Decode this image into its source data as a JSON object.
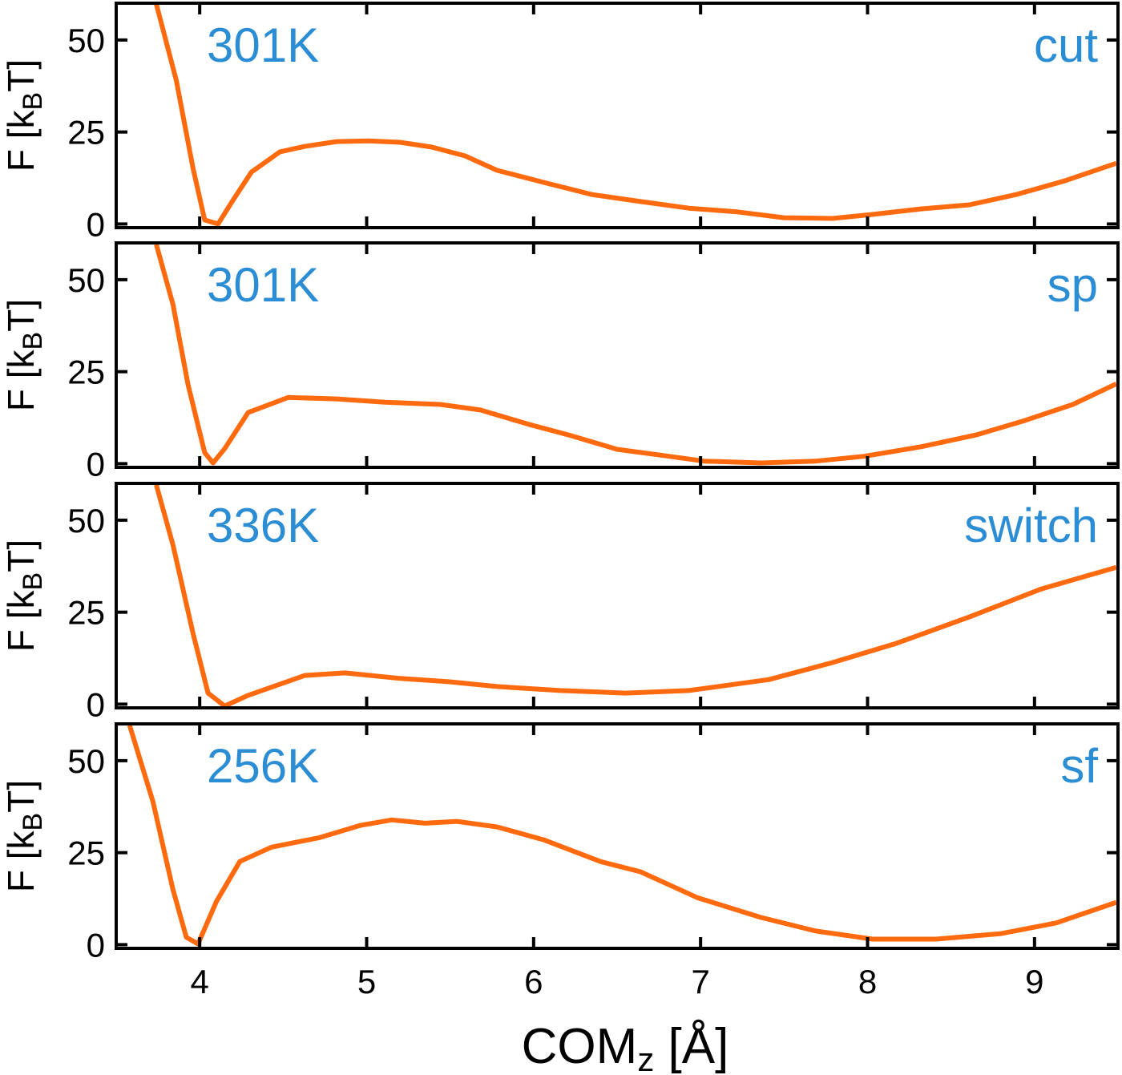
{
  "chart_data": [
    {
      "type": "line",
      "annotations": [
        "301K",
        "cut"
      ],
      "ylabel": [
        "F [k",
        "B",
        "T]"
      ],
      "xlim": [
        3.5,
        9.5
      ],
      "xticks": [
        4,
        5,
        6,
        7,
        8,
        9
      ],
      "ylim": [
        -1,
        60
      ],
      "yticks": [
        0,
        25,
        50
      ],
      "series": [
        {
          "color": "#ff6a0e",
          "x": [
            3.74,
            3.86,
            3.96,
            4.03,
            4.11,
            4.2,
            4.31,
            4.48,
            4.63,
            4.82,
            5.01,
            5.2,
            5.39,
            5.59,
            5.78,
            6.06,
            6.35,
            6.64,
            6.93,
            7.22,
            7.5,
            7.79,
            8.03,
            8.32,
            8.61,
            8.89,
            9.18,
            9.49
          ],
          "values": [
            59.8,
            39,
            15.2,
            1.1,
            0,
            6.5,
            14.1,
            19.6,
            21.1,
            22.4,
            22.6,
            22.2,
            20.9,
            18.5,
            14.6,
            11.3,
            8,
            6.1,
            4.3,
            3.3,
            1.7,
            1.5,
            2.6,
            4.1,
            5.2,
            8,
            11.7,
            16.5
          ]
        }
      ]
    },
    {
      "type": "line",
      "annotations": [
        "301K",
        "sp"
      ],
      "ylabel": [
        "F [k",
        "B",
        "T]"
      ],
      "xlim": [
        3.5,
        9.5
      ],
      "xticks": [
        4,
        5,
        6,
        7,
        8,
        9
      ],
      "ylim": [
        -1,
        60
      ],
      "yticks": [
        0,
        25,
        50
      ],
      "series": [
        {
          "color": "#ff6a0e",
          "x": [
            3.74,
            3.84,
            3.93,
            4.03,
            4.08,
            4.15,
            4.29,
            4.53,
            4.82,
            5.11,
            5.44,
            5.68,
            5.97,
            6.21,
            6.5,
            6.78,
            7.02,
            7.36,
            7.69,
            7.98,
            8.32,
            8.65,
            8.94,
            9.23,
            9.49
          ],
          "values": [
            59.6,
            43.3,
            21.5,
            3,
            0.2,
            4.1,
            13.9,
            18,
            17.6,
            16.7,
            16.1,
            14.6,
            10.7,
            7.8,
            3.9,
            2.2,
            0.7,
            0.2,
            0.7,
            2,
            4.6,
            7.8,
            11.7,
            16.1,
            21.7
          ]
        }
      ]
    },
    {
      "type": "line",
      "annotations": [
        "336K",
        "switch"
      ],
      "ylabel": [
        "F [k",
        "B",
        "T]"
      ],
      "xlim": [
        3.5,
        9.5
      ],
      "xticks": [
        4,
        5,
        6,
        7,
        8,
        9
      ],
      "ylim": [
        -1,
        60
      ],
      "yticks": [
        0,
        25,
        50
      ],
      "series": [
        {
          "color": "#ff6a0e",
          "x": [
            3.74,
            3.84,
            3.96,
            4.05,
            4.15,
            4.29,
            4.63,
            4.87,
            5.2,
            5.49,
            5.78,
            6.16,
            6.55,
            6.93,
            7.41,
            7.79,
            8.17,
            8.61,
            9.04,
            9.49
          ],
          "values": [
            59.6,
            43.3,
            19.3,
            3,
            -0.5,
            2.4,
            7.8,
            8.5,
            7,
            6.1,
            4.8,
            3.7,
            3,
            3.7,
            6.7,
            11.3,
            16.5,
            23.7,
            31.3,
            37.2
          ]
        }
      ]
    },
    {
      "type": "line",
      "annotations": [
        "256K",
        "sf"
      ],
      "ylabel": [
        "F [k",
        "B",
        "T]"
      ],
      "xlabel": [
        "COM",
        "z",
        " [Å]"
      ],
      "xlim": [
        3.5,
        9.5
      ],
      "xticks": [
        4,
        5,
        6,
        7,
        8,
        9
      ],
      "ylim": [
        -1,
        60
      ],
      "yticks": [
        0,
        25,
        50
      ],
      "series": [
        {
          "color": "#ff6a0e",
          "x": [
            3.58,
            3.72,
            3.84,
            3.92,
            3.99,
            4.1,
            4.24,
            4.43,
            4.72,
            4.96,
            5.15,
            5.35,
            5.54,
            5.78,
            6.06,
            6.4,
            6.64,
            6.98,
            7.36,
            7.69,
            8.03,
            8.41,
            8.8,
            9.13,
            9.49
          ],
          "values": [
            59.6,
            38.9,
            15,
            2,
            0.2,
            11.7,
            22.6,
            26.5,
            29.1,
            32.4,
            33.9,
            33,
            33.5,
            32,
            28.5,
            22.6,
            19.8,
            12.8,
            7.4,
            3.7,
            1.5,
            1.5,
            3,
            5.9,
            11.5
          ]
        }
      ]
    }
  ]
}
